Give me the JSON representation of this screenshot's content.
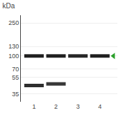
{
  "chart_data": {
    "type": "blot",
    "title": "kDa",
    "categories": [
      "1",
      "2",
      "3",
      "4"
    ],
    "series": [
      {
        "values": [
          100,
          100,
          100,
          100
        ],
        "intensity": [
          0.88,
          0.88,
          0.85,
          0.88
        ]
      },
      {
        "values": [
          44,
          46,
          null,
          null
        ],
        "intensity": [
          0.82,
          0.78,
          null,
          null
        ]
      }
    ],
    "arrow": 100,
    "log": "y",
    "ylim": [
      28,
      310
    ],
    "yticks": [
      250,
      130,
      100,
      70,
      55,
      35
    ],
    "grid": true
  }
}
